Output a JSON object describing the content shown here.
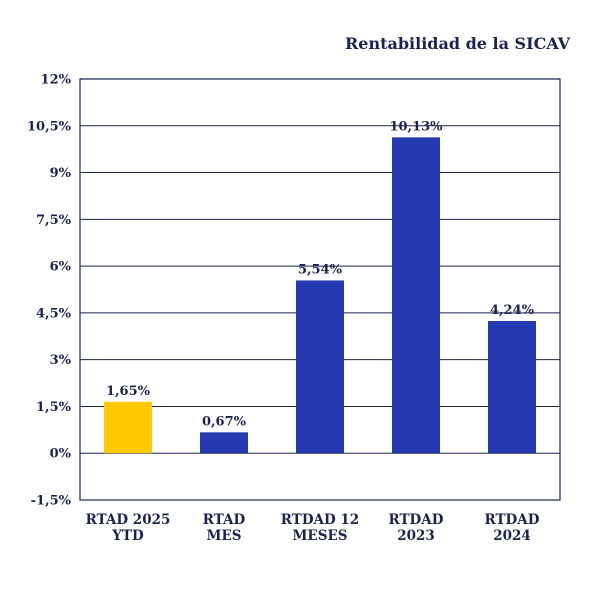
{
  "chart_data": {
    "type": "bar",
    "title": "Rentabilidad de la SICAV",
    "categories": [
      [
        "RTAD 2025",
        "YTD"
      ],
      [
        "RTAD",
        "MES"
      ],
      [
        "RTDAD 12",
        "MESES"
      ],
      [
        "RTDAD",
        "2023"
      ],
      [
        "RTDAD",
        "2024"
      ]
    ],
    "values": [
      1.65,
      0.67,
      5.54,
      10.13,
      4.24
    ],
    "value_labels": [
      "1,65%",
      "0,67%",
      "5,54%",
      "10,13%",
      "4,24%"
    ],
    "bar_colors": [
      "#FFC800",
      "#2539B0",
      "#2539B0",
      "#2539B0",
      "#2539B0"
    ],
    "ylim": [
      -1.5,
      12
    ],
    "yticks": [
      -1.5,
      0,
      1.5,
      3,
      4.5,
      6,
      7.5,
      9,
      10.5,
      12
    ],
    "ytick_labels": [
      "-1,5%",
      "0%",
      "1,5%",
      "3%",
      "4,5%",
      "6%",
      "7,5%",
      "9%",
      "10,5%",
      "12%"
    ],
    "grid": true,
    "axis_color": "#1a2350",
    "xlabel": "",
    "ylabel": ""
  }
}
